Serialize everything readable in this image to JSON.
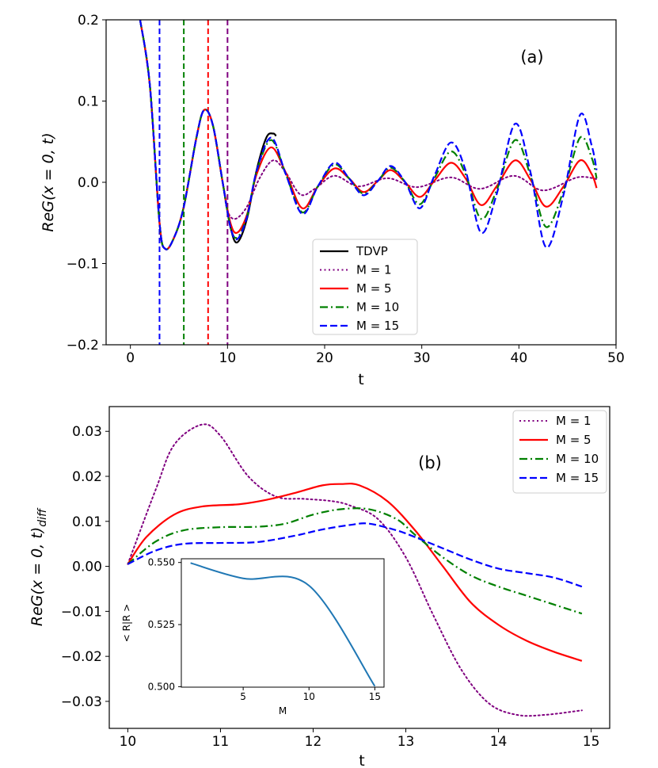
{
  "chart_data": [
    {
      "type": "line",
      "panel_label": "(a)",
      "xlabel": "t",
      "ylabel": "ReG(x = 0, t)",
      "xlim": [
        -2.5,
        50
      ],
      "ylim": [
        -0.2,
        0.2
      ],
      "xticks": [
        0,
        10,
        20,
        30,
        40,
        50
      ],
      "xtick_labels": [
        "0",
        "10",
        "20",
        "30",
        "40",
        "50"
      ],
      "yticks": [
        -0.2,
        -0.1,
        0.0,
        0.1,
        0.2
      ],
      "ytick_labels": [
        "−0.2",
        "−0.1",
        "0.0",
        "0.1",
        "0.2"
      ],
      "legend_position": "lower-center",
      "vertical_markers": [
        {
          "t": 3,
          "color": "#0000ff"
        },
        {
          "t": 5.5,
          "color": "#008000"
        },
        {
          "t": 8,
          "color": "#ff0000"
        },
        {
          "t": 10,
          "color": "#800080"
        }
      ],
      "series": [
        {
          "name": "TDVP",
          "color": "#000000",
          "style": "solid",
          "width": 2.2,
          "points": [
            [
              1.0,
              0.2
            ],
            [
              2.0,
              0.12
            ],
            [
              3.0,
              -0.05
            ],
            [
              3.6,
              -0.082
            ],
            [
              4.5,
              -0.068
            ],
            [
              5.5,
              -0.03
            ],
            [
              6.8,
              0.055
            ],
            [
              7.6,
              0.089
            ],
            [
              8.5,
              0.07
            ],
            [
              9.5,
              0.0
            ],
            [
              10.3,
              -0.055
            ],
            [
              11.0,
              -0.074
            ],
            [
              12.0,
              -0.045
            ],
            [
              13.0,
              0.015
            ],
            [
              14.0,
              0.055
            ],
            [
              14.7,
              0.06
            ],
            [
              15.0,
              0.057
            ]
          ]
        },
        {
          "name": "M = 1",
          "color": "#800080",
          "style": "dotted",
          "width": 2.0,
          "points": [
            [
              1.0,
              0.2
            ],
            [
              2.0,
              0.12
            ],
            [
              3.0,
              -0.05
            ],
            [
              3.6,
              -0.082
            ],
            [
              4.5,
              -0.068
            ],
            [
              5.5,
              -0.03
            ],
            [
              6.8,
              0.055
            ],
            [
              7.6,
              0.089
            ],
            [
              8.5,
              0.07
            ],
            [
              9.5,
              0.0
            ],
            [
              10.0,
              -0.035
            ],
            [
              10.8,
              -0.045
            ],
            [
              12.0,
              -0.03
            ],
            [
              13.3,
              0.005
            ],
            [
              14.7,
              0.027
            ],
            [
              16.0,
              0.012
            ],
            [
              17.5,
              -0.015
            ],
            [
              19.0,
              -0.008
            ],
            [
              21.0,
              0.008
            ],
            [
              23.5,
              -0.005
            ],
            [
              26.5,
              0.005
            ],
            [
              29.5,
              -0.006
            ],
            [
              33.0,
              0.006
            ],
            [
              36.0,
              -0.008
            ],
            [
              39.5,
              0.008
            ],
            [
              42.5,
              -0.01
            ],
            [
              46.0,
              0.006
            ],
            [
              48.0,
              0.004
            ]
          ]
        },
        {
          "name": "M = 5",
          "color": "#ff0000",
          "style": "solid",
          "width": 2.2,
          "points": [
            [
              1.0,
              0.2
            ],
            [
              2.0,
              0.12
            ],
            [
              3.0,
              -0.05
            ],
            [
              3.6,
              -0.082
            ],
            [
              4.5,
              -0.068
            ],
            [
              5.5,
              -0.03
            ],
            [
              6.8,
              0.055
            ],
            [
              7.6,
              0.089
            ],
            [
              8.5,
              0.07
            ],
            [
              9.5,
              0.0
            ],
            [
              10.3,
              -0.05
            ],
            [
              11.0,
              -0.062
            ],
            [
              12.0,
              -0.04
            ],
            [
              13.0,
              0.01
            ],
            [
              14.5,
              0.043
            ],
            [
              16.0,
              0.012
            ],
            [
              17.7,
              -0.032
            ],
            [
              19.3,
              -0.005
            ],
            [
              21.0,
              0.017
            ],
            [
              22.5,
              0.005
            ],
            [
              24.0,
              -0.012
            ],
            [
              25.5,
              0.002
            ],
            [
              26.8,
              0.015
            ],
            [
              28.3,
              0.0
            ],
            [
              29.8,
              -0.018
            ],
            [
              31.3,
              0.002
            ],
            [
              33.0,
              0.024
            ],
            [
              34.5,
              0.005
            ],
            [
              36.1,
              -0.028
            ],
            [
              37.7,
              -0.005
            ],
            [
              39.6,
              0.027
            ],
            [
              41.2,
              0.003
            ],
            [
              42.8,
              -0.03
            ],
            [
              44.6,
              -0.005
            ],
            [
              46.3,
              0.027
            ],
            [
              47.5,
              0.01
            ],
            [
              48.0,
              -0.007
            ]
          ]
        },
        {
          "name": "M = 10",
          "color": "#008000",
          "style": "dashdot",
          "width": 2.2,
          "points": [
            [
              1.0,
              0.2
            ],
            [
              2.0,
              0.12
            ],
            [
              3.0,
              -0.05
            ],
            [
              3.6,
              -0.082
            ],
            [
              4.5,
              -0.068
            ],
            [
              5.5,
              -0.03
            ],
            [
              6.8,
              0.055
            ],
            [
              7.6,
              0.089
            ],
            [
              8.5,
              0.07
            ],
            [
              9.5,
              0.0
            ],
            [
              10.3,
              -0.055
            ],
            [
              11.0,
              -0.068
            ],
            [
              12.0,
              -0.042
            ],
            [
              13.0,
              0.013
            ],
            [
              14.5,
              0.052
            ],
            [
              16.0,
              0.01
            ],
            [
              17.7,
              -0.037
            ],
            [
              19.3,
              -0.005
            ],
            [
              21.0,
              0.022
            ],
            [
              22.5,
              0.005
            ],
            [
              24.0,
              -0.014
            ],
            [
              25.5,
              0.002
            ],
            [
              26.8,
              0.018
            ],
            [
              28.3,
              0.0
            ],
            [
              29.8,
              -0.027
            ],
            [
              31.3,
              0.005
            ],
            [
              33.0,
              0.038
            ],
            [
              34.5,
              0.01
            ],
            [
              36.1,
              -0.045
            ],
            [
              37.7,
              -0.01
            ],
            [
              39.6,
              0.052
            ],
            [
              41.2,
              0.008
            ],
            [
              42.8,
              -0.055
            ],
            [
              44.6,
              -0.01
            ],
            [
              46.3,
              0.055
            ],
            [
              47.5,
              0.03
            ],
            [
              48.0,
              0.005
            ]
          ]
        },
        {
          "name": "M = 15",
          "color": "#0000ff",
          "style": "dashed",
          "width": 2.2,
          "points": [
            [
              1.0,
              0.2
            ],
            [
              2.0,
              0.12
            ],
            [
              3.0,
              -0.05
            ],
            [
              3.6,
              -0.082
            ],
            [
              4.5,
              -0.068
            ],
            [
              5.5,
              -0.03
            ],
            [
              6.8,
              0.055
            ],
            [
              7.6,
              0.089
            ],
            [
              8.5,
              0.07
            ],
            [
              9.5,
              0.0
            ],
            [
              10.3,
              -0.055
            ],
            [
              11.0,
              -0.07
            ],
            [
              12.0,
              -0.043
            ],
            [
              13.0,
              0.014
            ],
            [
              14.5,
              0.055
            ],
            [
              16.0,
              0.01
            ],
            [
              17.7,
              -0.039
            ],
            [
              19.3,
              -0.005
            ],
            [
              21.0,
              0.024
            ],
            [
              22.5,
              0.005
            ],
            [
              24.0,
              -0.016
            ],
            [
              25.5,
              0.002
            ],
            [
              26.8,
              0.02
            ],
            [
              28.3,
              0.0
            ],
            [
              29.8,
              -0.032
            ],
            [
              31.3,
              0.008
            ],
            [
              33.0,
              0.049
            ],
            [
              34.5,
              0.015
            ],
            [
              36.1,
              -0.062
            ],
            [
              37.7,
              -0.015
            ],
            [
              39.6,
              0.072
            ],
            [
              41.2,
              0.012
            ],
            [
              42.8,
              -0.08
            ],
            [
              44.6,
              -0.015
            ],
            [
              46.3,
              0.083
            ],
            [
              47.5,
              0.045
            ],
            [
              48.0,
              0.015
            ]
          ]
        }
      ]
    },
    {
      "type": "line",
      "panel_label": "(b)",
      "xlabel": "t",
      "ylabel": "ReG(x = 0, t)",
      "ylabel_subscript": "diff",
      "xlim": [
        9.8,
        15.2
      ],
      "ylim": [
        -0.036,
        0.0355
      ],
      "xticks": [
        10,
        11,
        12,
        13,
        14,
        15
      ],
      "xtick_labels": [
        "10",
        "11",
        "12",
        "13",
        "14",
        "15"
      ],
      "yticks": [
        -0.03,
        -0.02,
        -0.01,
        0.0,
        0.01,
        0.02,
        0.03
      ],
      "ytick_labels": [
        "−0.03",
        "−0.02",
        "−0.01",
        "0.00",
        "0.01",
        "0.02",
        "0.03"
      ],
      "legend_position": "upper-right",
      "series": [
        {
          "name": "M = 1",
          "color": "#800080",
          "style": "dotted",
          "width": 2.0,
          "points": [
            [
              10.0,
              0.0005
            ],
            [
              10.3,
              0.017
            ],
            [
              10.5,
              0.027
            ],
            [
              10.8,
              0.0315
            ],
            [
              11.0,
              0.029
            ],
            [
              11.3,
              0.02
            ],
            [
              11.6,
              0.0155
            ],
            [
              11.9,
              0.015
            ],
            [
              12.2,
              0.0145
            ],
            [
              12.4,
              0.0135
            ],
            [
              12.7,
              0.0105
            ],
            [
              13.0,
              0.002
            ],
            [
              13.3,
              -0.011
            ],
            [
              13.6,
              -0.023
            ],
            [
              13.9,
              -0.0305
            ],
            [
              14.2,
              -0.033
            ],
            [
              14.5,
              -0.033
            ],
            [
              14.9,
              -0.032
            ]
          ]
        },
        {
          "name": "M = 5",
          "color": "#ff0000",
          "style": "solid",
          "width": 2.2,
          "points": [
            [
              10.0,
              0.0005
            ],
            [
              10.2,
              0.0065
            ],
            [
              10.5,
              0.0115
            ],
            [
              10.8,
              0.0133
            ],
            [
              11.2,
              0.0138
            ],
            [
              11.5,
              0.0148
            ],
            [
              11.8,
              0.0163
            ],
            [
              12.1,
              0.018
            ],
            [
              12.3,
              0.0183
            ],
            [
              12.5,
              0.018
            ],
            [
              12.8,
              0.0145
            ],
            [
              13.1,
              0.008
            ],
            [
              13.4,
              0.0
            ],
            [
              13.7,
              -0.008
            ],
            [
              14.0,
              -0.013
            ],
            [
              14.3,
              -0.0165
            ],
            [
              14.6,
              -0.019
            ],
            [
              14.9,
              -0.021
            ]
          ]
        },
        {
          "name": "M = 10",
          "color": "#008000",
          "style": "dashdot",
          "width": 2.2,
          "points": [
            [
              10.0,
              0.0005
            ],
            [
              10.3,
              0.0055
            ],
            [
              10.6,
              0.008
            ],
            [
              11.0,
              0.0087
            ],
            [
              11.4,
              0.0088
            ],
            [
              11.7,
              0.0095
            ],
            [
              12.0,
              0.0115
            ],
            [
              12.3,
              0.0127
            ],
            [
              12.6,
              0.0127
            ],
            [
              12.9,
              0.0105
            ],
            [
              13.1,
              0.007
            ],
            [
              13.4,
              0.002
            ],
            [
              13.7,
              -0.002
            ],
            [
              14.0,
              -0.0045
            ],
            [
              14.3,
              -0.0065
            ],
            [
              14.6,
              -0.0085
            ],
            [
              14.9,
              -0.0105
            ]
          ]
        },
        {
          "name": "M = 15",
          "color": "#0000ff",
          "style": "dashed",
          "width": 2.2,
          "points": [
            [
              10.0,
              0.0005
            ],
            [
              10.3,
              0.0035
            ],
            [
              10.6,
              0.005
            ],
            [
              11.0,
              0.0052
            ],
            [
              11.4,
              0.0054
            ],
            [
              11.8,
              0.0068
            ],
            [
              12.1,
              0.0082
            ],
            [
              12.4,
              0.0092
            ],
            [
              12.6,
              0.0095
            ],
            [
              12.9,
              0.008
            ],
            [
              13.1,
              0.0065
            ],
            [
              13.4,
              0.004
            ],
            [
              13.7,
              0.0015
            ],
            [
              14.0,
              -0.0005
            ],
            [
              14.3,
              -0.0015
            ],
            [
              14.6,
              -0.0025
            ],
            [
              14.9,
              -0.0045
            ]
          ]
        }
      ]
    },
    {
      "type": "line",
      "panel_label": "inset",
      "xlabel": "M",
      "ylabel": "< R|R >",
      "xlim": [
        0.3,
        15.7
      ],
      "ylim": [
        0.4998,
        0.5515
      ],
      "xticks": [
        5,
        10,
        15
      ],
      "xtick_labels": [
        "5",
        "10",
        "15"
      ],
      "yticks": [
        0.5,
        0.525,
        0.55
      ],
      "ytick_labels": [
        "0.500",
        "0.525",
        "0.550"
      ],
      "series": [
        {
          "name": "<R|R>",
          "color": "#1f77b4",
          "style": "solid",
          "width": 2.0,
          "points": [
            [
              1,
              0.5498
            ],
            [
              5,
              0.5436
            ],
            [
              10,
              0.5407
            ],
            [
              15,
              0.5002
            ]
          ]
        }
      ]
    }
  ]
}
